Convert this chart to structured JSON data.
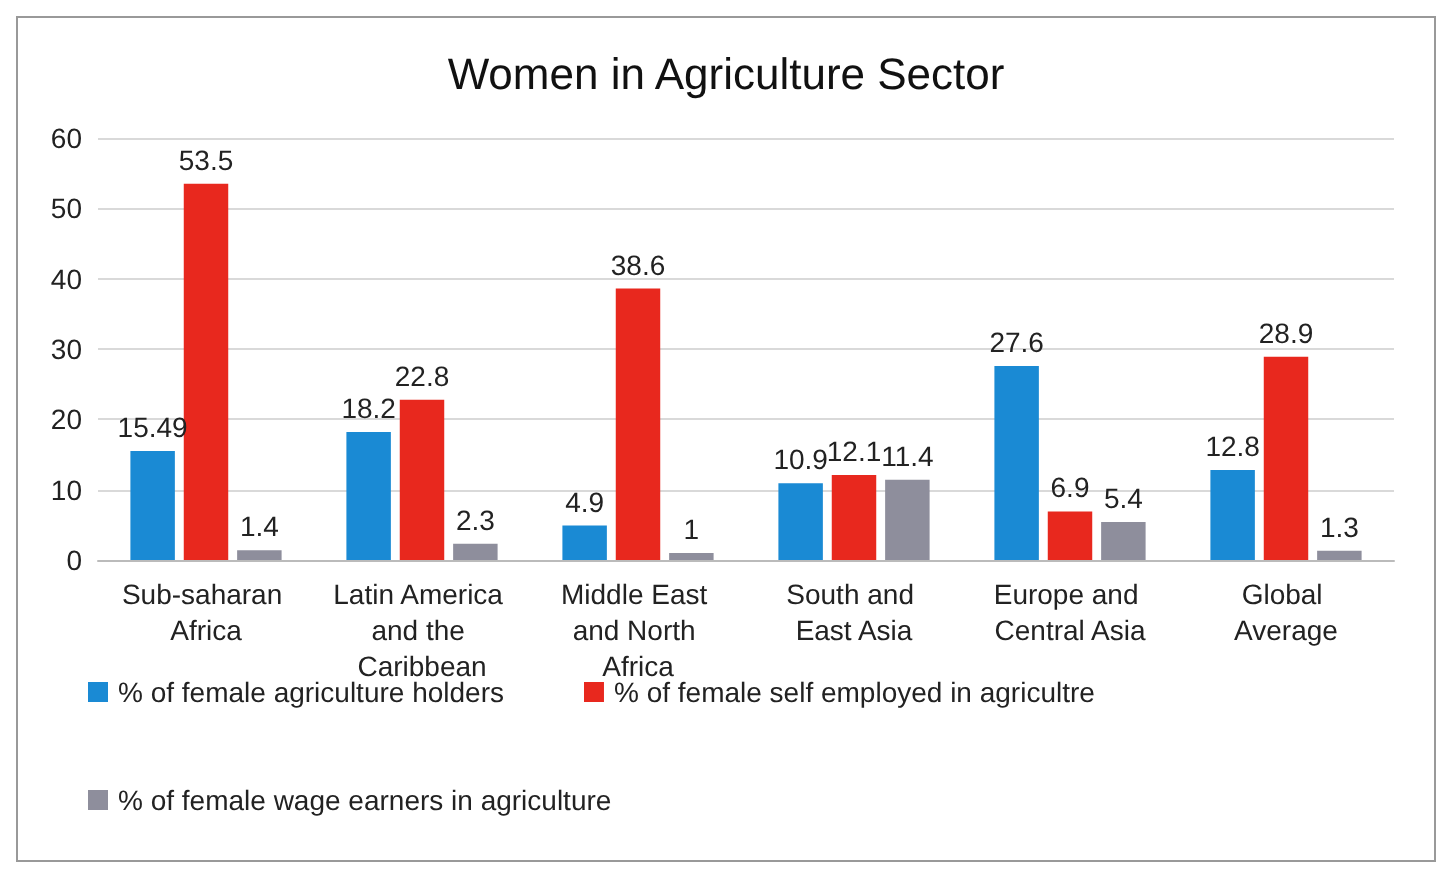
{
  "chart_data": {
    "type": "bar",
    "title": "Women in Agriculture Sector",
    "categories": [
      "Sub-saharan Africa",
      "Latin America and the Caribbean",
      "Middle East and North Africa",
      "South and East Asia",
      "Europe and Central Asia",
      "Global Average"
    ],
    "series": [
      {
        "name": "% of female agriculture holders",
        "color": "#1a8ad4",
        "values": [
          15.49,
          18.2,
          4.9,
          10.9,
          27.6,
          12.8
        ]
      },
      {
        "name": "% of female self employed in agricultre",
        "color": "#e8281e",
        "values": [
          53.5,
          22.8,
          38.6,
          12.1,
          6.9,
          28.9
        ]
      },
      {
        "name": "% of female wage earners in agriculture",
        "color": "#8e8e9c",
        "values": [
          1.4,
          2.3,
          1,
          11.4,
          5.4,
          1.3
        ]
      }
    ],
    "ylim": [
      0,
      60
    ],
    "yticks": [
      0,
      10,
      20,
      30,
      40,
      50,
      60
    ],
    "grid": "y",
    "legend": "bottom",
    "data_labels": true
  }
}
